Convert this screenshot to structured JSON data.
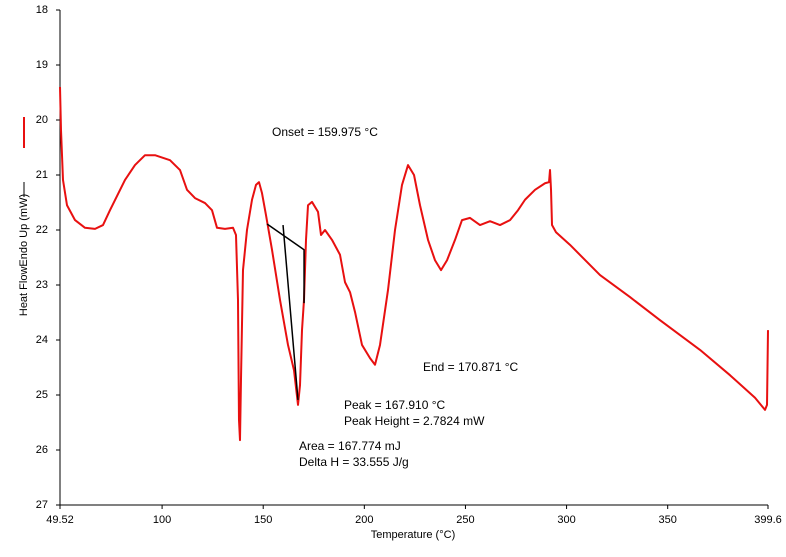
{
  "chart_data": {
    "type": "line",
    "x_label": "Temperature (°C)",
    "y_label": "Heat FlowEndo Up (mW)",
    "xlim": [
      49.52,
      399.6
    ],
    "xticks": [
      49.52,
      100,
      150,
      200,
      250,
      300,
      350,
      399.6
    ],
    "ylim": [
      27,
      18
    ],
    "yticks": [
      18,
      19,
      20,
      21,
      22,
      23,
      24,
      25,
      26,
      27
    ],
    "annotations": [
      "Onset = 159.975 °C",
      "End = 170.871 °C",
      "Peak = 167.910 °C",
      "Peak Height = 2.7824 mW",
      "Area = 167.774 mJ",
      "Delta H = 33.555 J/g"
    ],
    "series": [
      {
        "color": "#e81010",
        "x": [
          49.52,
          50.01,
          51.0,
          52.98,
          56.94,
          61.88,
          66.83,
          70.78,
          74.24,
          81.66,
          86.6,
          91.55,
          96.5,
          103.91,
          108.86,
          112.32,
          116.27,
          121.22,
          124.68,
          127.15,
          131.1,
          135.06,
          136.54,
          137.53,
          138.02,
          138.52,
          139.01,
          140.0,
          141.98,
          144.46,
          146.43,
          147.92,
          149.4,
          151.38,
          154.35,
          158.3,
          162.26,
          165.23,
          167.2,
          168.19,
          169.18,
          170.17,
          171.16,
          172.15,
          174.13,
          177.1,
          178.58,
          180.56,
          184.02,
          187.97,
          190.45,
          192.92,
          195.39,
          198.85,
          202.81,
          205.28,
          207.75,
          211.71,
          215.17,
          218.63,
          221.6,
          224.57,
          227.53,
          231.49,
          234.95,
          237.92,
          240.89,
          244.84,
          248.3,
          252.26,
          257.2,
          262.15,
          267.09,
          272.04,
          275.99,
          279.45,
          284.4,
          289.34,
          291.32,
          291.81,
          292.31,
          292.8,
          294.78,
          301.7,
          316.54,
          331.37,
          346.21,
          365.99,
          380.82,
          393.18,
          398.12,
          399.11,
          399.6
        ],
        "values": [
          19.4,
          20.18,
          21.09,
          21.55,
          21.82,
          21.96,
          21.98,
          21.91,
          21.64,
          21.09,
          20.82,
          20.64,
          20.64,
          20.73,
          20.91,
          21.27,
          21.42,
          21.51,
          21.64,
          21.96,
          21.98,
          21.96,
          22.09,
          23.27,
          25.45,
          25.82,
          24.73,
          22.73,
          22.0,
          21.45,
          21.18,
          21.13,
          21.33,
          21.73,
          22.36,
          23.27,
          24.09,
          24.55,
          25.18,
          24.82,
          23.82,
          23.27,
          22.18,
          21.55,
          21.49,
          21.67,
          22.09,
          22.0,
          22.18,
          22.45,
          22.95,
          23.13,
          23.49,
          24.09,
          24.33,
          24.45,
          24.09,
          23.09,
          22.0,
          21.18,
          20.82,
          21.0,
          21.55,
          22.18,
          22.55,
          22.73,
          22.55,
          22.18,
          21.82,
          21.78,
          21.91,
          21.84,
          21.91,
          21.82,
          21.64,
          21.45,
          21.27,
          21.15,
          21.13,
          20.91,
          21.27,
          21.91,
          22.04,
          22.27,
          22.82,
          23.22,
          23.64,
          24.18,
          24.64,
          25.05,
          25.27,
          25.18,
          23.82
        ]
      },
      {
        "color": "#000000",
        "x": [
          151.9,
          170.2,
          170.2,
          170.2,
          159.8,
          167.2
        ],
        "values": [
          21.89,
          22.36,
          23.33,
          null,
          21.91,
          25.09
        ]
      }
    ]
  }
}
